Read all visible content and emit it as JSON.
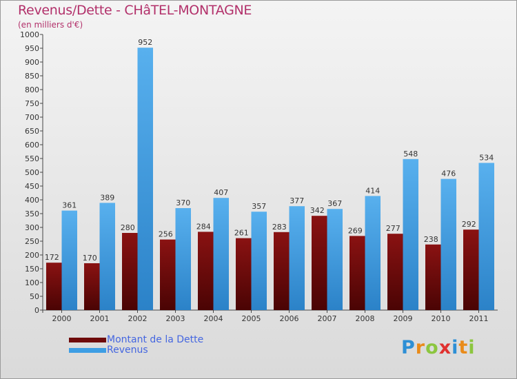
{
  "title": "Revenus/Dette - CHâTEL-MONTAGNE",
  "subtitle": "(en milliers d'€)",
  "logo": {
    "text": "Proxiti",
    "letters": [
      "P",
      "r",
      "o",
      "x",
      "i",
      "t",
      "i"
    ]
  },
  "colors": {
    "dette": "#6e0a0a",
    "revenus": "#3d9ee4",
    "title": "#b2306a",
    "legend_text": "#4466e0"
  },
  "chart_data": {
    "type": "bar",
    "title": "Revenus/Dette - CHâTEL-MONTAGNE",
    "ylabel": "(en milliers d'€)",
    "xlabel": "",
    "ylim": [
      0,
      1000
    ],
    "ytick_step": 50,
    "grid": false,
    "legend_position": "bottom-left",
    "categories": [
      "2000",
      "2001",
      "2002",
      "2003",
      "2004",
      "2005",
      "2006",
      "2007",
      "2008",
      "2009",
      "2010",
      "2011"
    ],
    "series": [
      {
        "name": "Montant de la Dette",
        "values": [
          172,
          170,
          280,
          256,
          284,
          261,
          283,
          342,
          269,
          277,
          238,
          292
        ]
      },
      {
        "name": "Revenus",
        "values": [
          361,
          389,
          952,
          370,
          407,
          357,
          377,
          367,
          414,
          548,
          476,
          534
        ]
      }
    ]
  }
}
